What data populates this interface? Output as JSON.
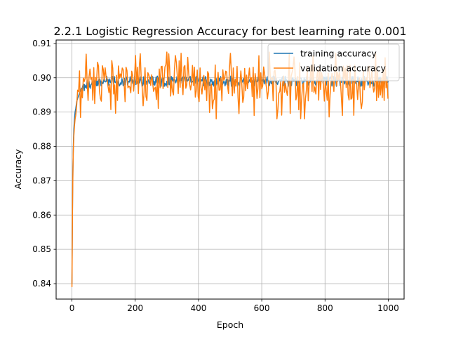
{
  "chart_data": {
    "type": "line",
    "title": "2.2.1 Logistic Regression Accuracy for best learning rate 0.001",
    "xlabel": "Epoch",
    "ylabel": "Accuracy",
    "xlim": [
      -50,
      1050
    ],
    "ylim": [
      0.8355,
      0.911
    ],
    "xticks": [
      0,
      200,
      400,
      600,
      800,
      1000
    ],
    "xtick_labels": [
      "0",
      "200",
      "400",
      "600",
      "800",
      "1000"
    ],
    "yticks": [
      0.84,
      0.85,
      0.86,
      0.87,
      0.88,
      0.89,
      0.9,
      0.91
    ],
    "ytick_labels": [
      "0.84",
      "0.85",
      "0.86",
      "0.87",
      "0.88",
      "0.89",
      "0.90",
      "0.91"
    ],
    "grid": true,
    "legend_position": "top-right",
    "series": [
      {
        "name": "training accuracy",
        "color": "#1f77b4",
        "x": [
          0,
          1,
          2,
          3,
          4,
          5,
          6,
          8,
          10,
          12,
          15,
          18,
          22,
          26,
          30,
          35,
          40,
          50,
          60,
          70,
          80,
          90,
          100,
          120,
          140,
          160,
          180,
          200,
          220,
          240,
          260,
          280,
          300,
          320,
          340,
          360,
          380,
          400,
          420,
          440,
          460,
          480,
          500,
          520,
          540,
          560,
          580,
          600,
          620,
          640,
          660,
          680,
          700,
          720,
          740,
          760,
          780,
          800,
          820,
          840,
          860,
          880,
          900,
          920,
          940,
          960,
          980,
          1000
        ],
        "values": [
          0.84,
          0.855,
          0.866,
          0.873,
          0.878,
          0.882,
          0.885,
          0.888,
          0.89,
          0.891,
          0.893,
          0.894,
          0.895,
          0.896,
          0.897,
          0.897,
          0.898,
          0.898,
          0.898,
          0.899,
          0.899,
          0.899,
          0.899,
          0.899,
          0.899,
          0.899,
          0.899,
          0.899,
          0.899,
          0.899,
          0.899,
          0.899,
          0.899,
          0.899,
          0.899,
          0.899,
          0.899,
          0.899,
          0.899,
          0.899,
          0.899,
          0.899,
          0.899,
          0.899,
          0.899,
          0.899,
          0.899,
          0.899,
          0.899,
          0.899,
          0.899,
          0.899,
          0.899,
          0.899,
          0.899,
          0.899,
          0.899,
          0.899,
          0.899,
          0.899,
          0.899,
          0.899,
          0.899,
          0.899,
          0.899,
          0.899,
          0.899,
          0.899
        ]
      },
      {
        "name": "validation accuracy",
        "color": "#ff7f0e",
        "initial": {
          "x": [
            0,
            1,
            2,
            3,
            4,
            6,
            8,
            10,
            12,
            15
          ],
          "values": [
            0.839,
            0.852,
            0.864,
            0.872,
            0.878,
            0.883,
            0.886,
            0.888,
            0.889,
            0.892
          ]
        },
        "noise_region": {
          "x_start": 15,
          "x_end": 1000,
          "step": 3,
          "mean": 0.8985,
          "typical_low": 0.893,
          "typical_high": 0.904,
          "min": 0.888,
          "max": 0.9075
        },
        "notable_points": [
          {
            "x": 25,
            "y": 0.902
          },
          {
            "x": 125,
            "y": 0.905
          },
          {
            "x": 215,
            "y": 0.907
          },
          {
            "x": 300,
            "y": 0.9075
          },
          {
            "x": 455,
            "y": 0.888
          },
          {
            "x": 575,
            "y": 0.889
          },
          {
            "x": 625,
            "y": 0.9075
          },
          {
            "x": 735,
            "y": 0.888
          },
          {
            "x": 855,
            "y": 0.889
          },
          {
            "x": 1000,
            "y": 0.894
          }
        ]
      }
    ]
  }
}
